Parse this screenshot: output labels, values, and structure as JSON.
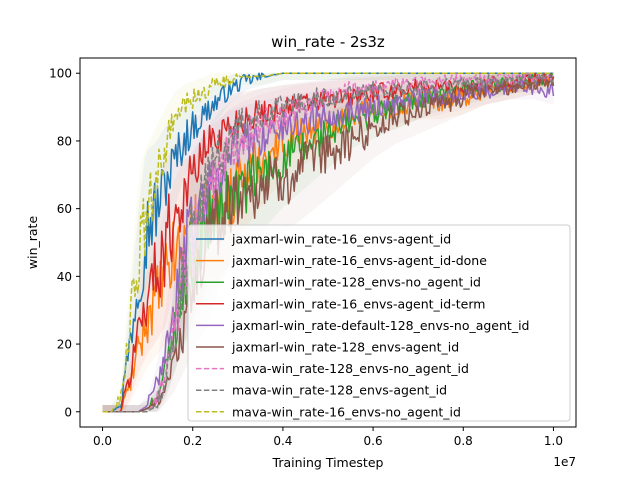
{
  "chart_data": {
    "type": "line",
    "title": "win_rate - 2s3z",
    "xlabel": "Training Timestep",
    "ylabel": "win_rate",
    "x_offset_label": "1e7",
    "xlim": [
      -0.05,
      1.05
    ],
    "ylim": [
      -4.5,
      104.5
    ],
    "x_ticks": [
      0.0,
      0.2,
      0.4,
      0.6,
      0.8,
      1.0
    ],
    "x_tick_labels": [
      "0.0",
      "0.2",
      "0.4",
      "0.6",
      "0.8",
      "1.0"
    ],
    "y_ticks": [
      0,
      20,
      40,
      60,
      80,
      100
    ],
    "y_tick_labels": [
      "0",
      "20",
      "40",
      "60",
      "80",
      "100"
    ],
    "legend_position": "lower right",
    "series": [
      {
        "name": "jaxmarl-win_rate-16_envs-agent_id",
        "color": "#1f77b4",
        "dash": "solid",
        "x": [
          0.0,
          0.02,
          0.04,
          0.06,
          0.08,
          0.1,
          0.12,
          0.14,
          0.16,
          0.18,
          0.2,
          0.24,
          0.28,
          0.32,
          0.36,
          0.4,
          0.5,
          0.6,
          0.7,
          0.8,
          0.9,
          1.0
        ],
        "y": [
          0,
          0,
          2,
          20,
          40,
          55,
          60,
          68,
          74,
          80,
          84,
          90,
          95,
          98,
          99,
          100,
          100,
          100,
          100,
          100,
          100,
          100
        ]
      },
      {
        "name": "jaxmarl-win_rate-16_envs-agent_id-done",
        "color": "#ff7f0e",
        "dash": "solid",
        "x": [
          0.0,
          0.02,
          0.04,
          0.06,
          0.08,
          0.1,
          0.12,
          0.14,
          0.16,
          0.18,
          0.2,
          0.22,
          0.24,
          0.26,
          0.28,
          0.3,
          0.35,
          0.4,
          0.45,
          0.5,
          0.55,
          0.6,
          0.65,
          0.7,
          0.75,
          0.8,
          0.85,
          0.9,
          0.95,
          1.0
        ],
        "y": [
          0,
          0,
          0,
          8,
          18,
          28,
          34,
          40,
          46,
          50,
          52,
          55,
          60,
          58,
          62,
          68,
          74,
          80,
          83,
          85,
          88,
          90,
          90,
          92,
          92,
          93,
          95,
          96,
          97,
          99
        ]
      },
      {
        "name": "jaxmarl-win_rate-128_envs-no_agent_id",
        "color": "#2ca02c",
        "dash": "solid",
        "x": [
          0.0,
          0.06,
          0.08,
          0.1,
          0.12,
          0.14,
          0.16,
          0.18,
          0.2,
          0.22,
          0.24,
          0.26,
          0.28,
          0.3,
          0.33,
          0.36,
          0.4,
          0.45,
          0.5,
          0.55,
          0.6,
          0.65,
          0.7,
          0.75,
          0.8,
          0.85,
          0.9,
          0.95,
          1.0
        ],
        "y": [
          0,
          0,
          0,
          1,
          4,
          12,
          25,
          38,
          48,
          54,
          57,
          60,
          62,
          65,
          68,
          70,
          74,
          78,
          82,
          86,
          88,
          90,
          92,
          94,
          95,
          96,
          97,
          98,
          98
        ]
      },
      {
        "name": "jaxmarl-win_rate-16_envs-agent_id-term",
        "color": "#d62728",
        "dash": "solid",
        "x": [
          0.0,
          0.02,
          0.04,
          0.06,
          0.08,
          0.1,
          0.12,
          0.14,
          0.16,
          0.18,
          0.2,
          0.22,
          0.24,
          0.26,
          0.28,
          0.3,
          0.35,
          0.4,
          0.45,
          0.5,
          0.55,
          0.6,
          0.65,
          0.7,
          0.75,
          0.8,
          0.85,
          0.9,
          0.95,
          1.0
        ],
        "y": [
          0,
          0,
          0,
          10,
          25,
          35,
          42,
          50,
          58,
          64,
          70,
          76,
          80,
          82,
          84,
          86,
          88,
          90,
          91,
          92,
          93,
          94,
          95,
          96,
          96,
          96,
          97,
          97,
          98,
          99
        ]
      },
      {
        "name": "jaxmarl-win_rate-default-128_envs-no_agent_id",
        "color": "#9467bd",
        "dash": "solid",
        "x": [
          0.0,
          0.06,
          0.08,
          0.1,
          0.12,
          0.14,
          0.16,
          0.18,
          0.2,
          0.22,
          0.24,
          0.26,
          0.28,
          0.3,
          0.33,
          0.36,
          0.4,
          0.45,
          0.5,
          0.55,
          0.6,
          0.7,
          0.8,
          0.9,
          0.96,
          1.0
        ],
        "y": [
          0,
          0,
          0,
          2,
          8,
          20,
          32,
          45,
          55,
          62,
          68,
          72,
          76,
          78,
          80,
          82,
          84,
          86,
          88,
          89,
          90,
          92,
          94,
          96,
          96,
          95
        ]
      },
      {
        "name": "jaxmarl-win_rate-128_envs-agent_id",
        "color": "#8c564b",
        "dash": "solid",
        "x": [
          0.0,
          0.06,
          0.08,
          0.1,
          0.12,
          0.14,
          0.16,
          0.18,
          0.2,
          0.22,
          0.24,
          0.26,
          0.28,
          0.3,
          0.34,
          0.38,
          0.42,
          0.46,
          0.5,
          0.55,
          0.6,
          0.65,
          0.7,
          0.75,
          0.8,
          0.85,
          0.9,
          0.95,
          1.0
        ],
        "y": [
          0,
          0,
          0,
          1,
          3,
          8,
          15,
          25,
          35,
          45,
          52,
          58,
          62,
          64,
          66,
          68,
          70,
          73,
          76,
          80,
          84,
          87,
          89,
          91,
          93,
          95,
          96,
          97,
          98
        ]
      },
      {
        "name": "mava-win_rate-128_envs-no_agent_id",
        "color": "#e377c2",
        "dash": "dashed",
        "x": [
          0.0,
          0.1,
          0.12,
          0.14,
          0.16,
          0.18,
          0.2,
          0.22,
          0.24,
          0.26,
          0.28,
          0.3,
          0.35,
          0.4,
          0.45,
          0.5,
          0.55,
          0.6,
          0.7,
          0.8,
          0.9,
          1.0
        ],
        "y": [
          0,
          0,
          3,
          12,
          26,
          40,
          50,
          58,
          66,
          72,
          77,
          80,
          85,
          88,
          91,
          93,
          95,
          96,
          97,
          98,
          98,
          99
        ]
      },
      {
        "name": "mava-win_rate-128_envs-agent_id",
        "color": "#7f7f7f",
        "dash": "dashed",
        "x": [
          0.0,
          0.1,
          0.12,
          0.14,
          0.16,
          0.18,
          0.2,
          0.22,
          0.24,
          0.26,
          0.28,
          0.3,
          0.35,
          0.4,
          0.45,
          0.5,
          0.55,
          0.6,
          0.7,
          0.8,
          0.9,
          1.0
        ],
        "y": [
          0,
          0,
          2,
          10,
          25,
          40,
          52,
          62,
          70,
          76,
          80,
          84,
          88,
          90,
          92,
          93,
          94,
          95,
          96,
          97,
          98,
          99
        ]
      },
      {
        "name": "mava-win_rate-16_envs-no_agent_id",
        "color": "#bcbd22",
        "dash": "dashed",
        "x": [
          0.0,
          0.02,
          0.04,
          0.06,
          0.08,
          0.1,
          0.12,
          0.14,
          0.16,
          0.18,
          0.2,
          0.22,
          0.24,
          0.26,
          0.28,
          0.3,
          0.35,
          0.4,
          0.5,
          0.6,
          0.7,
          0.8,
          0.9,
          1.0
        ],
        "y": [
          0,
          0,
          4,
          25,
          45,
          58,
          68,
          78,
          86,
          90,
          92,
          94,
          96,
          97,
          98,
          99,
          99,
          100,
          100,
          100,
          100,
          100,
          100,
          100
        ]
      }
    ]
  }
}
